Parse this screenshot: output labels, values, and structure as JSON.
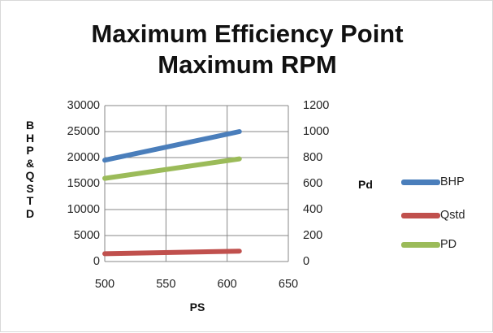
{
  "chart_data": {
    "type": "line",
    "title": [
      "Maximum Efficiency Point",
      "Maximum RPM"
    ],
    "xlabel": "PS",
    "ylabel_left": "BHP&QSTD",
    "ylabel_right": "Pd",
    "xlim": [
      500,
      650
    ],
    "xticks": [
      "500",
      "550",
      "600",
      "650"
    ],
    "ylim_left": [
      0,
      30000
    ],
    "yticks_left": [
      "0",
      "5000",
      "10000",
      "15000",
      "20000",
      "25000",
      "30000"
    ],
    "ylim_right": [
      0,
      1200
    ],
    "yticks_right": [
      "0",
      "200",
      "400",
      "600",
      "800",
      "1000",
      "1200"
    ],
    "grid": true,
    "legend_position": "right",
    "series": [
      {
        "name": "BHP",
        "axis": "left",
        "color": "#4a7ebb",
        "x": [
          500,
          610
        ],
        "y": [
          19500,
          25000
        ]
      },
      {
        "name": "Qstd",
        "axis": "left",
        "color": "#c0504d",
        "x": [
          500,
          610
        ],
        "y": [
          1500,
          2000
        ]
      },
      {
        "name": "PD",
        "axis": "right",
        "color": "#9bbb59",
        "x": [
          500,
          610
        ],
        "y": [
          640,
          790
        ]
      }
    ]
  }
}
